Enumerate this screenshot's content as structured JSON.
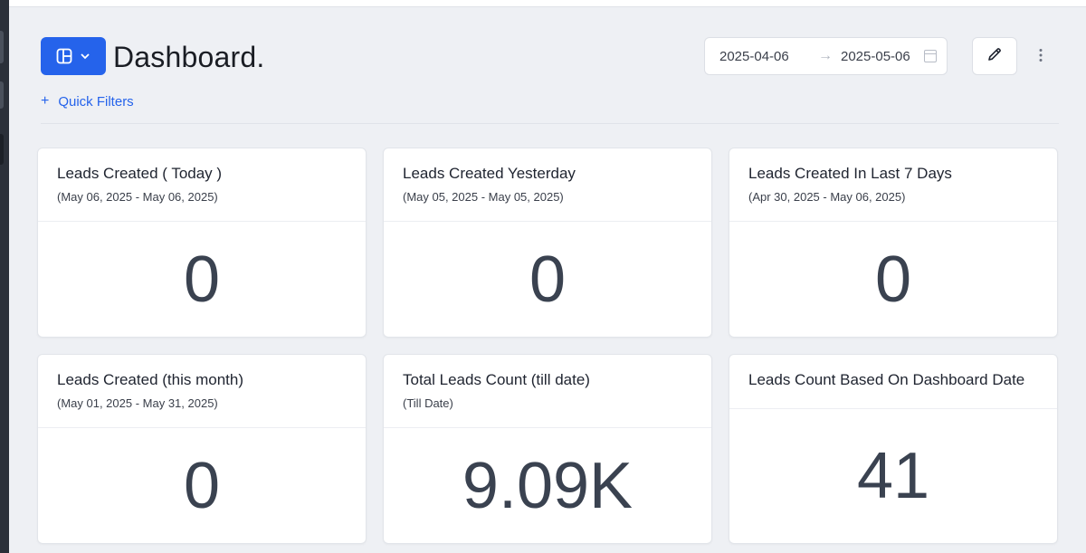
{
  "header": {
    "title": "Dashboard.",
    "date_start": "2025-04-06",
    "date_end": "2025-05-06",
    "accent": "#2563eb"
  },
  "filters": {
    "quick_filters_label": "Quick Filters"
  },
  "cards": [
    {
      "title": "Leads Created ( Today )",
      "subtitle": "(May 06, 2025 - May 06, 2025)",
      "value": "0"
    },
    {
      "title": "Leads Created Yesterday",
      "subtitle": "(May 05, 2025 - May 05, 2025)",
      "value": "0"
    },
    {
      "title": "Leads Created In Last 7 Days",
      "subtitle": "(Apr 30, 2025 - May 06, 2025)",
      "value": "0"
    },
    {
      "title": "Leads Created (this month)",
      "subtitle": "(May 01, 2025 - May 31, 2025)",
      "value": "0"
    },
    {
      "title": "Total Leads Count (till date)",
      "subtitle": "(Till Date)",
      "value": "9.09K"
    },
    {
      "title": "Leads Count Based On Dashboard Date",
      "subtitle": "",
      "value": "41"
    }
  ],
  "icons": {
    "layout": "layout-panel-icon",
    "chevron": "chevron-down-icon",
    "arrow": "arrow-right-icon",
    "calendar": "calendar-icon",
    "edit": "pencil-icon",
    "more": "more-vertical-icon",
    "plus": "plus-icon"
  }
}
